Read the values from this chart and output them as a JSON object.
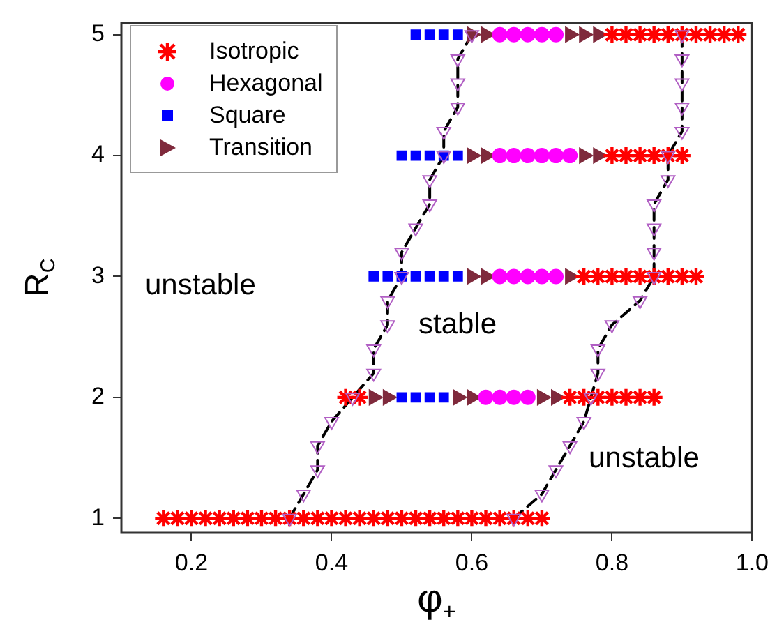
{
  "chart_data": {
    "type": "scatter",
    "xlabel": "φ$_{+}$",
    "ylabel": "R$_{C}$",
    "xlim": [
      0.1,
      1.0
    ],
    "ylim": [
      0.88,
      5.1
    ],
    "xticks": [
      0.2,
      0.4,
      0.6,
      0.8,
      {
        "value": 1.0,
        "label": "1.0"
      }
    ],
    "yticks": [
      1,
      2,
      3,
      4,
      5
    ],
    "grid": false,
    "legend": "top left",
    "series": [
      {
        "type": "line",
        "color": "#000000",
        "line_style": "dashed",
        "marker": "none",
        "x": [
          0.34,
          0.36,
          0.38,
          0.38,
          0.4,
          0.43,
          0.46,
          0.46,
          0.48,
          0.48,
          0.5,
          0.5,
          0.52,
          0.54,
          0.54,
          0.56,
          0.56,
          0.58,
          0.58,
          0.58,
          0.6
        ],
        "values": [
          1.0,
          1.2,
          1.4,
          1.6,
          1.8,
          2.0,
          2.2,
          2.4,
          2.6,
          2.8,
          3.0,
          3.2,
          3.4,
          3.6,
          3.8,
          4.0,
          4.2,
          4.4,
          4.6,
          4.8,
          5.0
        ]
      },
      {
        "type": "line",
        "color": "#000000",
        "line_style": "dashed",
        "marker": "none",
        "x": [
          0.66,
          0.7,
          0.72,
          0.74,
          0.76,
          0.77,
          0.78,
          0.78,
          0.8,
          0.84,
          0.86,
          0.86,
          0.86,
          0.86,
          0.88,
          0.88,
          0.9,
          0.9,
          0.9,
          0.9,
          0.9
        ],
        "values": [
          1.0,
          1.2,
          1.4,
          1.6,
          1.8,
          2.0,
          2.2,
          2.4,
          2.6,
          2.8,
          3.0,
          3.2,
          3.4,
          3.6,
          3.8,
          4.0,
          4.2,
          4.4,
          4.6,
          4.8,
          5.0
        ]
      },
      {
        "type": "scatter",
        "color": "#b15fc4",
        "marker": "triangle-down",
        "x": [
          0.34,
          0.36,
          0.38,
          0.38,
          0.4,
          0.43,
          0.46,
          0.46,
          0.48,
          0.48,
          0.5,
          0.5,
          0.52,
          0.54,
          0.54,
          0.56,
          0.56,
          0.58,
          0.58,
          0.58,
          0.6
        ],
        "values": [
          1.0,
          1.2,
          1.4,
          1.6,
          1.8,
          2.0,
          2.2,
          2.4,
          2.6,
          2.8,
          3.0,
          3.2,
          3.4,
          3.6,
          3.8,
          4.0,
          4.2,
          4.4,
          4.6,
          4.8,
          5.0
        ]
      },
      {
        "type": "scatter",
        "color": "#b15fc4",
        "marker": "triangle-down",
        "x": [
          0.66,
          0.7,
          0.72,
          0.74,
          0.76,
          0.77,
          0.78,
          0.78,
          0.8,
          0.84,
          0.86,
          0.86,
          0.86,
          0.86,
          0.88,
          0.88,
          0.9,
          0.9,
          0.9,
          0.9,
          0.9
        ],
        "values": [
          1.0,
          1.2,
          1.4,
          1.6,
          1.8,
          2.0,
          2.2,
          2.4,
          2.6,
          2.8,
          3.0,
          3.2,
          3.4,
          3.6,
          3.8,
          4.0,
          4.2,
          4.4,
          4.6,
          4.8,
          5.0
        ]
      },
      {
        "type": "scatter",
        "name": "Isotropic",
        "color": "#ff0000",
        "marker": "cross",
        "x": [
          0.16,
          0.18,
          0.2,
          0.22,
          0.24,
          0.26,
          0.28,
          0.3,
          0.32,
          0.34,
          0.36,
          0.38,
          0.4,
          0.42,
          0.44,
          0.46,
          0.48,
          0.5,
          0.52,
          0.54,
          0.56,
          0.58,
          0.6,
          0.62,
          0.64,
          0.66,
          0.68,
          0.7,
          0.42,
          0.44,
          0.74,
          0.76,
          0.78,
          0.8,
          0.82,
          0.84,
          0.86,
          0.76,
          0.78,
          0.8,
          0.82,
          0.84,
          0.86,
          0.88,
          0.9,
          0.92,
          0.8,
          0.82,
          0.84,
          0.86,
          0.88,
          0.9,
          0.8,
          0.82,
          0.84,
          0.86,
          0.88,
          0.9,
          0.92,
          0.94,
          0.96,
          0.98
        ],
        "values": [
          1,
          1,
          1,
          1,
          1,
          1,
          1,
          1,
          1,
          1,
          1,
          1,
          1,
          1,
          1,
          1,
          1,
          1,
          1,
          1,
          1,
          1,
          1,
          1,
          1,
          1,
          1,
          1,
          2,
          2,
          2,
          2,
          2,
          2,
          2,
          2,
          2,
          3,
          3,
          3,
          3,
          3,
          3,
          3,
          3,
          3,
          4,
          4,
          4,
          4,
          4,
          4,
          5,
          5,
          5,
          5,
          5,
          5,
          5,
          5,
          5,
          5
        ]
      },
      {
        "type": "scatter",
        "name": "Hexagonal",
        "color": "#ff00ff",
        "marker": "circle",
        "x": [
          0.62,
          0.64,
          0.66,
          0.68,
          0.64,
          0.66,
          0.68,
          0.7,
          0.72,
          0.64,
          0.66,
          0.68,
          0.7,
          0.72,
          0.74,
          0.64,
          0.66,
          0.68,
          0.7,
          0.72
        ],
        "values": [
          2,
          2,
          2,
          2,
          3,
          3,
          3,
          3,
          3,
          4,
          4,
          4,
          4,
          4,
          4,
          5,
          5,
          5,
          5,
          5
        ]
      },
      {
        "type": "scatter",
        "name": "Square",
        "color": "#0000ff",
        "marker": "square",
        "x": [
          0.5,
          0.52,
          0.54,
          0.56,
          0.46,
          0.48,
          0.5,
          0.52,
          0.54,
          0.56,
          0.58,
          0.5,
          0.52,
          0.54,
          0.56,
          0.58,
          0.52,
          0.54,
          0.56,
          0.58
        ],
        "values": [
          2,
          2,
          2,
          2,
          3,
          3,
          3,
          3,
          3,
          3,
          3,
          4,
          4,
          4,
          4,
          4,
          5,
          5,
          5,
          5
        ]
      },
      {
        "type": "scatter",
        "name": "Transition",
        "color": "#7f2a3c",
        "marker": "triangle-right",
        "x": [
          0.46,
          0.48,
          0.58,
          0.6,
          0.7,
          0.72,
          0.6,
          0.62,
          0.74,
          0.6,
          0.62,
          0.76,
          0.78,
          0.6,
          0.62,
          0.74,
          0.76,
          0.78
        ],
        "values": [
          2,
          2,
          2,
          2,
          2,
          2,
          3,
          3,
          3,
          4,
          4,
          4,
          4,
          5,
          5,
          5,
          5,
          5
        ]
      }
    ],
    "annotations": [
      "unstable",
      "stable",
      "unstable"
    ]
  }
}
